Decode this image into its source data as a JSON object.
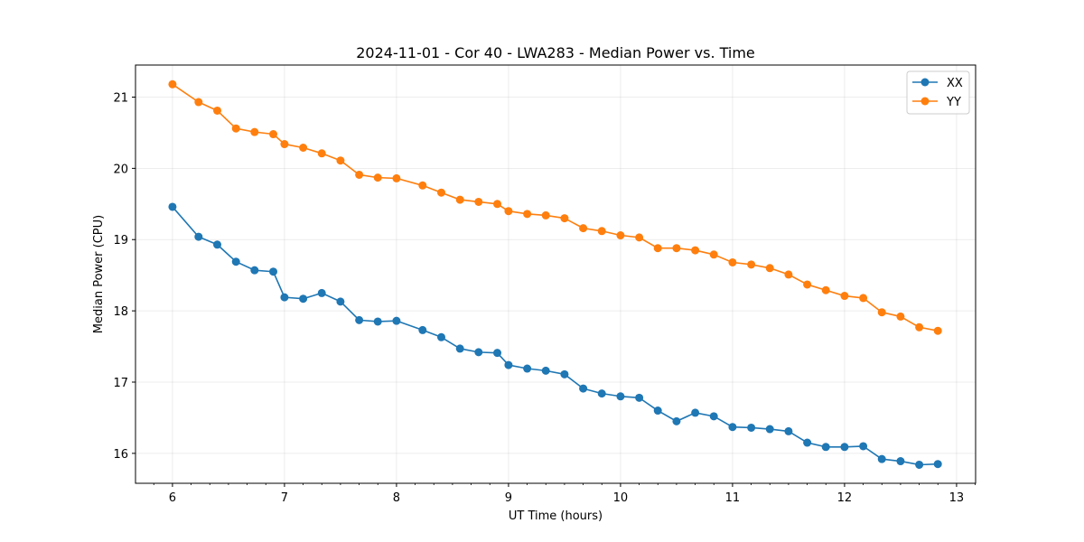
{
  "chart_data": {
    "type": "line",
    "title": "2024-11-01 - Cor 40 - LWA283 - Median Power vs. Time",
    "xlabel": "UT Time (hours)",
    "ylabel": "Median Power (CPU)",
    "xlim": [
      5.67,
      13.17
    ],
    "ylim": [
      15.58,
      21.45
    ],
    "xticks": [
      6,
      7,
      8,
      9,
      10,
      11,
      12,
      13
    ],
    "yticks": [
      16,
      17,
      18,
      19,
      20,
      21
    ],
    "grid": true,
    "legend_position": "top-right",
    "x": [
      6.0,
      6.233,
      6.4,
      6.567,
      6.733,
      6.9,
      7.0,
      7.167,
      7.333,
      7.5,
      7.667,
      7.833,
      8.0,
      8.233,
      8.4,
      8.567,
      8.733,
      8.9,
      9.0,
      9.167,
      9.333,
      9.5,
      9.667,
      9.833,
      10.0,
      10.167,
      10.333,
      10.5,
      10.667,
      10.833,
      11.0,
      11.167,
      11.333,
      11.5,
      11.667,
      11.833,
      12.0,
      12.167,
      12.333,
      12.5,
      12.667,
      12.833
    ],
    "series": [
      {
        "name": "XX",
        "color": "#1f77b4",
        "values": [
          19.46,
          19.04,
          18.93,
          18.69,
          18.57,
          18.55,
          18.19,
          18.17,
          18.25,
          18.13,
          17.87,
          17.85,
          17.86,
          17.73,
          17.63,
          17.47,
          17.42,
          17.41,
          17.24,
          17.19,
          17.16,
          17.11,
          16.91,
          16.84,
          16.8,
          16.78,
          16.6,
          16.45,
          16.57,
          16.52,
          16.37,
          16.36,
          16.34,
          16.31,
          16.15,
          16.09,
          16.09,
          16.1,
          15.92,
          15.89,
          15.84,
          15.85
        ]
      },
      {
        "name": "YY",
        "color": "#ff7f0e",
        "values": [
          21.18,
          20.93,
          20.81,
          20.56,
          20.51,
          20.48,
          20.34,
          20.29,
          20.21,
          20.11,
          19.91,
          19.87,
          19.86,
          19.76,
          19.66,
          19.56,
          19.53,
          19.5,
          19.4,
          19.36,
          19.34,
          19.3,
          19.16,
          19.12,
          19.06,
          19.03,
          18.88,
          18.88,
          18.85,
          18.79,
          18.68,
          18.65,
          18.6,
          18.51,
          18.37,
          18.29,
          18.21,
          18.18,
          17.98,
          17.92,
          17.77,
          17.72
        ]
      }
    ]
  }
}
